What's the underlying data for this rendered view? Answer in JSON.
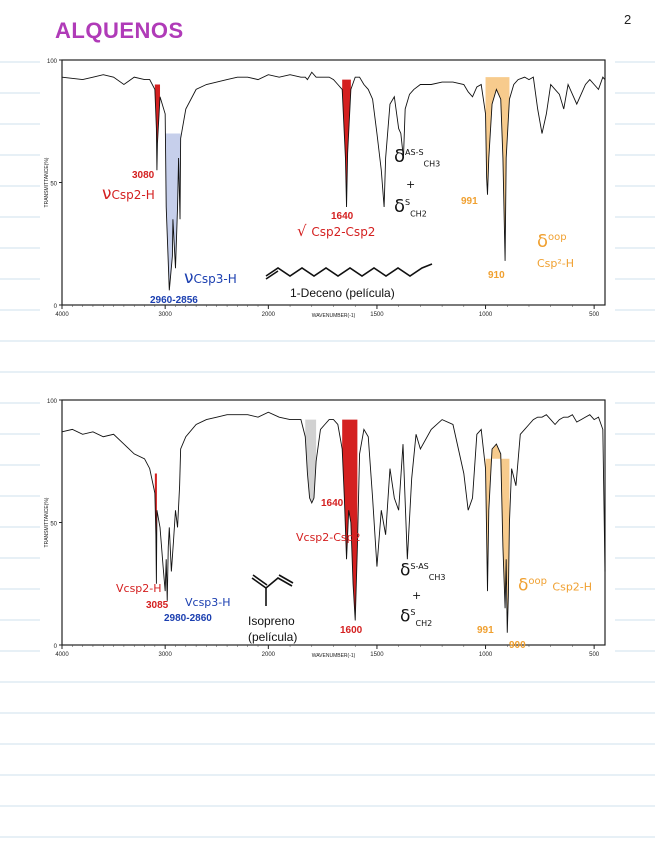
{
  "page": {
    "number": "2",
    "title": "ALQUENOS"
  },
  "colors": {
    "red": "#d42020",
    "blue": "#1b3fb0",
    "orange": "#f0a030",
    "title": "#b03bb8",
    "rule": "#cfe0ee"
  },
  "chart_data": [
    {
      "type": "line",
      "title": "",
      "xlabel": "WAVENUMBER(-1)",
      "ylabel": "TRANSMITTANCE(%)",
      "x_ticks": [
        "4000",
        "3000",
        "2000",
        "1500",
        "1000",
        "500"
      ],
      "y_ticks": [
        "0",
        "50",
        "100"
      ],
      "xlim": [
        4000,
        450
      ],
      "ylim": [
        0,
        100
      ],
      "grid": false,
      "series": [
        {
          "x": [
            4000,
            3800,
            3700,
            3600,
            3500,
            3400,
            3300,
            3200,
            3150,
            3100,
            3085,
            3080,
            3075,
            3050,
            3000,
            2990,
            2960,
            2930,
            2925,
            2900,
            2880,
            2870,
            2856,
            2850,
            2800,
            2700,
            2600,
            2500,
            2400,
            2300,
            2200,
            2100,
            2000,
            1950,
            1900,
            1850,
            1830,
            1820,
            1800,
            1780,
            1760,
            1740,
            1720,
            1700,
            1680,
            1660,
            1645,
            1640,
            1635,
            1620,
            1600,
            1580,
            1560,
            1540,
            1520,
            1500,
            1480,
            1467,
            1460,
            1440,
            1420,
            1400,
            1390,
            1378,
            1370,
            1350,
            1330,
            1300,
            1250,
            1200,
            1150,
            1100,
            1080,
            1060,
            1040,
            1020,
            1000,
            995,
            991,
            985,
            970,
            950,
            930,
            920,
            910,
            905,
            890,
            870,
            850,
            820,
            800,
            780,
            760,
            740,
            720,
            700,
            680,
            660,
            640,
            620,
            600,
            580,
            560,
            540,
            520,
            500,
            480,
            460,
            450
          ],
          "y": [
            93,
            92,
            93,
            94,
            93,
            90,
            93,
            92,
            92,
            88,
            72,
            55,
            66,
            85,
            78,
            40,
            6,
            20,
            35,
            15,
            40,
            60,
            35,
            68,
            80,
            88,
            90,
            91,
            92,
            93,
            93,
            92,
            94,
            93,
            94,
            93,
            93,
            92,
            95,
            93,
            93,
            93,
            93,
            92,
            90,
            88,
            60,
            40,
            62,
            88,
            93,
            93,
            90,
            88,
            84,
            70,
            55,
            40,
            60,
            82,
            85,
            72,
            70,
            60,
            80,
            86,
            88,
            90,
            90,
            91,
            91,
            90,
            87,
            85,
            89,
            90,
            78,
            52,
            45,
            60,
            82,
            88,
            84,
            60,
            18,
            60,
            84,
            90,
            92,
            93,
            92,
            93,
            80,
            70,
            78,
            90,
            88,
            86,
            80,
            90,
            86,
            82,
            86,
            90,
            92,
            90,
            88,
            93,
            92
          ]
        }
      ],
      "annotations": {
        "a1": "3080",
        "a2": "ν",
        "a3": "Csp2-H",
        "a4": "ν",
        "a5": "Csp3-H",
        "a6": "2960-2856",
        "a7": "1640",
        "a8": "√",
        "a9": "Csp2-Csp2",
        "a10": "δ",
        "a11": "AS-S",
        "a12": "CH3",
        "a13": "+",
        "a14": "δ",
        "a15": "S",
        "a16": "CH2",
        "a17": "991",
        "a18": "910",
        "a19": "δ",
        "a20": "oop",
        "a21": "Csp²-H",
        "a22": "1-Deceno (película)"
      }
    },
    {
      "type": "line",
      "title": "",
      "xlabel": "WAVENUMBER(-1)",
      "ylabel": "TRANSMITTANCE(%)",
      "x_ticks": [
        "4000",
        "3000",
        "2000",
        "1500",
        "1000",
        "500"
      ],
      "y_ticks": [
        "0",
        "50",
        "100"
      ],
      "xlim": [
        4000,
        450
      ],
      "ylim": [
        0,
        100
      ],
      "grid": false,
      "series": [
        {
          "x": [
            4000,
            3900,
            3800,
            3700,
            3600,
            3500,
            3400,
            3300,
            3200,
            3150,
            3100,
            3090,
            3085,
            3080,
            3050,
            3020,
            3000,
            2990,
            2980,
            2970,
            2960,
            2940,
            2920,
            2900,
            2880,
            2860,
            2850,
            2800,
            2700,
            2600,
            2500,
            2400,
            2300,
            2200,
            2100,
            2000,
            1950,
            1900,
            1850,
            1830,
            1820,
            1810,
            1800,
            1790,
            1780,
            1760,
            1740,
            1720,
            1700,
            1680,
            1660,
            1650,
            1640,
            1630,
            1620,
            1610,
            1600,
            1590,
            1580,
            1560,
            1540,
            1520,
            1500,
            1480,
            1460,
            1440,
            1420,
            1400,
            1380,
            1360,
            1340,
            1320,
            1300,
            1250,
            1200,
            1150,
            1100,
            1080,
            1060,
            1040,
            1020,
            1000,
            995,
            991,
            985,
            970,
            950,
            930,
            920,
            910,
            905,
            900,
            895,
            890,
            880,
            860,
            840,
            820,
            800,
            780,
            760,
            740,
            720,
            700,
            680,
            660,
            640,
            620,
            600,
            580,
            560,
            540,
            520,
            500,
            480,
            460,
            450
          ],
          "y": [
            87,
            88,
            86,
            87,
            85,
            86,
            82,
            78,
            76,
            72,
            62,
            45,
            25,
            55,
            48,
            32,
            22,
            35,
            18,
            40,
            48,
            30,
            42,
            55,
            48,
            65,
            80,
            85,
            90,
            92,
            93,
            94,
            94,
            94,
            93,
            95,
            93,
            92,
            92,
            85,
            70,
            60,
            58,
            60,
            75,
            88,
            90,
            92,
            92,
            90,
            80,
            60,
            35,
            55,
            50,
            25,
            10,
            40,
            78,
            88,
            85,
            60,
            32,
            55,
            45,
            72,
            60,
            55,
            82,
            35,
            68,
            86,
            80,
            88,
            92,
            90,
            70,
            55,
            60,
            86,
            88,
            72,
            45,
            22,
            55,
            80,
            82,
            78,
            40,
            15,
            35,
            5,
            20,
            50,
            72,
            65,
            86,
            88,
            90,
            92,
            93,
            93,
            94,
            92,
            90,
            92,
            93,
            93,
            94,
            91,
            92,
            93,
            94,
            92,
            93,
            88,
            30
          ]
        }
      ],
      "annotations": {
        "b1": "1640",
        "b2": "Vcsp2-Csp2",
        "b3": "Vcsp2-H",
        "b4": "3085",
        "b5": "Vcsp3-H",
        "b6": "2980-2860",
        "b7": "Isopreno",
        "b8": "(película)",
        "b9": "1600",
        "b10": "δ",
        "b11": "S-AS",
        "b12": "CH3",
        "b13": "+",
        "b14": "δ",
        "b15": "S",
        "b16": "CH2",
        "b17": "991",
        "b18": "900",
        "b19": "δ",
        "b20": "oop",
        "b21": "Csp2-H"
      }
    }
  ]
}
